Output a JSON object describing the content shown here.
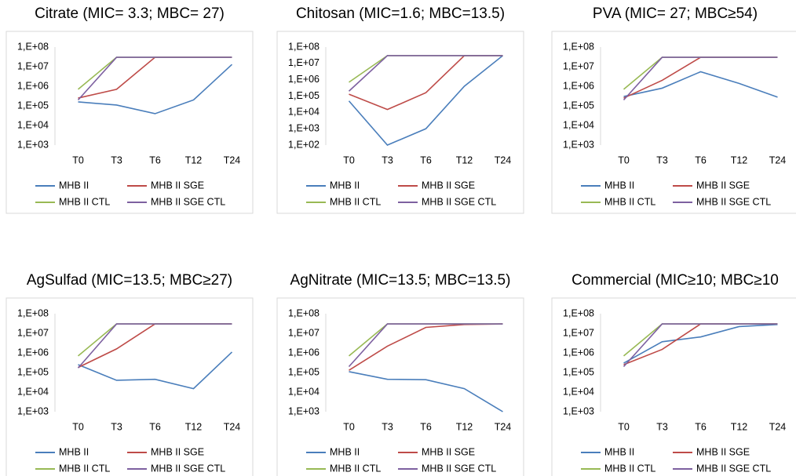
{
  "chart_data": [
    {
      "type": "line",
      "title": "Citrate (MIC= 3.3; MBC= 27)",
      "yscale": "log",
      "categories": [
        "T0",
        "T3",
        "T6",
        "T12",
        "T24"
      ],
      "ylim": [
        1000,
        100000000
      ],
      "yticks": [
        {
          "value": 1000,
          "label": "1,E+03"
        },
        {
          "value": 10000,
          "label": "1,E+04"
        },
        {
          "value": 100000,
          "label": "1,E+05"
        },
        {
          "value": 1000000,
          "label": "1,E+06"
        },
        {
          "value": 10000000,
          "label": "1,E+07"
        },
        {
          "value": 100000000,
          "label": "1,E+08"
        }
      ],
      "series": [
        {
          "name": "MHB II",
          "color": "#4a7ebb",
          "values": [
            160000,
            110000,
            40000,
            200000,
            13000000
          ]
        },
        {
          "name": "MHB II SGE",
          "color": "#be4b48",
          "values": [
            250000,
            700000,
            30000000,
            30000000,
            30000000
          ]
        },
        {
          "name": "MHB II CTL",
          "color": "#98b954",
          "values": [
            700000,
            30000000,
            30000000,
            30000000,
            30000000
          ]
        },
        {
          "name": "MHB II SGE CTL",
          "color": "#7d60a0",
          "values": [
            200000,
            30000000,
            30000000,
            30000000,
            30000000
          ]
        }
      ]
    },
    {
      "type": "line",
      "title": "Chitosan (MIC=1.6; MBC=13.5)",
      "yscale": "log",
      "categories": [
        "T0",
        "T3",
        "T6",
        "T12",
        "T24"
      ],
      "ylim": [
        100,
        100000000
      ],
      "yticks": [
        {
          "value": 100,
          "label": "1,E+02"
        },
        {
          "value": 1000,
          "label": "1,E+03"
        },
        {
          "value": 10000,
          "label": "1,E+04"
        },
        {
          "value": 100000,
          "label": "1,E+05"
        },
        {
          "value": 1000000,
          "label": "1,E+06"
        },
        {
          "value": 10000000,
          "label": "1,E+07"
        },
        {
          "value": 100000000,
          "label": "1,E+08"
        }
      ],
      "series": [
        {
          "name": "MHB II",
          "color": "#4a7ebb",
          "values": [
            50000,
            100,
            1000,
            400000,
            30000000
          ]
        },
        {
          "name": "MHB II SGE",
          "color": "#be4b48",
          "values": [
            130000,
            15000,
            160000,
            30000000,
            30000000
          ]
        },
        {
          "name": "MHB II CTL",
          "color": "#98b954",
          "values": [
            700000,
            30000000,
            30000000,
            30000000,
            30000000
          ]
        },
        {
          "name": "MHB II SGE CTL",
          "color": "#7d60a0",
          "values": [
            200000,
            30000000,
            30000000,
            30000000,
            30000000
          ]
        }
      ]
    },
    {
      "type": "line",
      "title": "PVA (MIC= 27; MBC≥54)",
      "yscale": "log",
      "categories": [
        "T0",
        "T3",
        "T6",
        "T12",
        "T24"
      ],
      "ylim": [
        1000,
        100000000
      ],
      "yticks": [
        {
          "value": 1000,
          "label": "1,E+03"
        },
        {
          "value": 10000,
          "label": "1,E+04"
        },
        {
          "value": 100000,
          "label": "1,E+05"
        },
        {
          "value": 1000000,
          "label": "1,E+06"
        },
        {
          "value": 10000000,
          "label": "1,E+07"
        },
        {
          "value": 100000000,
          "label": "1,E+08"
        }
      ],
      "series": [
        {
          "name": "MHB II",
          "color": "#4a7ebb",
          "values": [
            300000,
            800000,
            5500000,
            1400000,
            280000
          ]
        },
        {
          "name": "MHB II SGE",
          "color": "#be4b48",
          "values": [
            250000,
            2000000,
            30000000,
            30000000,
            30000000
          ]
        },
        {
          "name": "MHB II CTL",
          "color": "#98b954",
          "values": [
            700000,
            30000000,
            30000000,
            30000000,
            30000000
          ]
        },
        {
          "name": "MHB II SGE CTL",
          "color": "#7d60a0",
          "values": [
            200000,
            30000000,
            30000000,
            30000000,
            30000000
          ]
        }
      ]
    },
    {
      "type": "line",
      "title": "AgSulfad (MIC=13.5; MBC≥27)",
      "yscale": "log",
      "categories": [
        "T0",
        "T3",
        "T6",
        "T12",
        "T24"
      ],
      "ylim": [
        1000,
        100000000
      ],
      "yticks": [
        {
          "value": 1000,
          "label": "1,E+03"
        },
        {
          "value": 10000,
          "label": "1,E+04"
        },
        {
          "value": 100000,
          "label": "1,E+05"
        },
        {
          "value": 1000000,
          "label": "1,E+06"
        },
        {
          "value": 10000000,
          "label": "1,E+07"
        },
        {
          "value": 100000000,
          "label": "1,E+08"
        }
      ],
      "series": [
        {
          "name": "MHB II",
          "color": "#4a7ebb",
          "values": [
            250000,
            40000,
            45000,
            15000,
            1100000
          ]
        },
        {
          "name": "MHB II SGE",
          "color": "#be4b48",
          "values": [
            180000,
            1600000,
            30000000,
            30000000,
            30000000
          ]
        },
        {
          "name": "MHB II CTL",
          "color": "#98b954",
          "values": [
            700000,
            30000000,
            30000000,
            30000000,
            30000000
          ]
        },
        {
          "name": "MHB II SGE CTL",
          "color": "#7d60a0",
          "values": [
            170000,
            30000000,
            30000000,
            30000000,
            30000000
          ]
        }
      ]
    },
    {
      "type": "line",
      "title": "AgNitrate (MIC=13.5; MBC=13.5)",
      "yscale": "log",
      "categories": [
        "T0",
        "T3",
        "T6",
        "T12",
        "T24"
      ],
      "ylim": [
        1000,
        100000000
      ],
      "yticks": [
        {
          "value": 1000,
          "label": "1,E+03"
        },
        {
          "value": 10000,
          "label": "1,E+04"
        },
        {
          "value": 100000,
          "label": "1,E+05"
        },
        {
          "value": 1000000,
          "label": "1,E+06"
        },
        {
          "value": 10000000,
          "label": "1,E+07"
        },
        {
          "value": 100000000,
          "label": "1,E+08"
        }
      ],
      "series": [
        {
          "name": "MHB II",
          "color": "#4a7ebb",
          "values": [
            110000,
            45000,
            43000,
            15000,
            1000
          ]
        },
        {
          "name": "MHB II SGE",
          "color": "#be4b48",
          "values": [
            130000,
            2200000,
            20000000,
            28000000,
            30000000
          ]
        },
        {
          "name": "MHB II CTL",
          "color": "#98b954",
          "values": [
            700000,
            30000000,
            30000000,
            30000000,
            30000000
          ]
        },
        {
          "name": "MHB II SGE CTL",
          "color": "#7d60a0",
          "values": [
            200000,
            30000000,
            30000000,
            30000000,
            30000000
          ]
        }
      ]
    },
    {
      "type": "line",
      "title": "Commercial (MIC≥10; MBC≥10",
      "yscale": "log",
      "categories": [
        "T0",
        "T3",
        "T6",
        "T12",
        "T24"
      ],
      "ylim": [
        1000,
        100000000
      ],
      "yticks": [
        {
          "value": 1000,
          "label": "1,E+03"
        },
        {
          "value": 10000,
          "label": "1,E+04"
        },
        {
          "value": 100000,
          "label": "1,E+05"
        },
        {
          "value": 1000000,
          "label": "1,E+06"
        },
        {
          "value": 10000000,
          "label": "1,E+07"
        },
        {
          "value": 100000000,
          "label": "1,E+08"
        }
      ],
      "series": [
        {
          "name": "MHB II",
          "color": "#4a7ebb",
          "values": [
            300000,
            3700000,
            6500000,
            22000000,
            28000000
          ]
        },
        {
          "name": "MHB II SGE",
          "color": "#be4b48",
          "values": [
            250000,
            1500000,
            30000000,
            30000000,
            30000000
          ]
        },
        {
          "name": "MHB II CTL",
          "color": "#98b954",
          "values": [
            700000,
            30000000,
            30000000,
            30000000,
            30000000
          ]
        },
        {
          "name": "MHB II SGE CTL",
          "color": "#7d60a0",
          "values": [
            200000,
            30000000,
            30000000,
            30000000,
            30000000
          ]
        }
      ]
    }
  ]
}
